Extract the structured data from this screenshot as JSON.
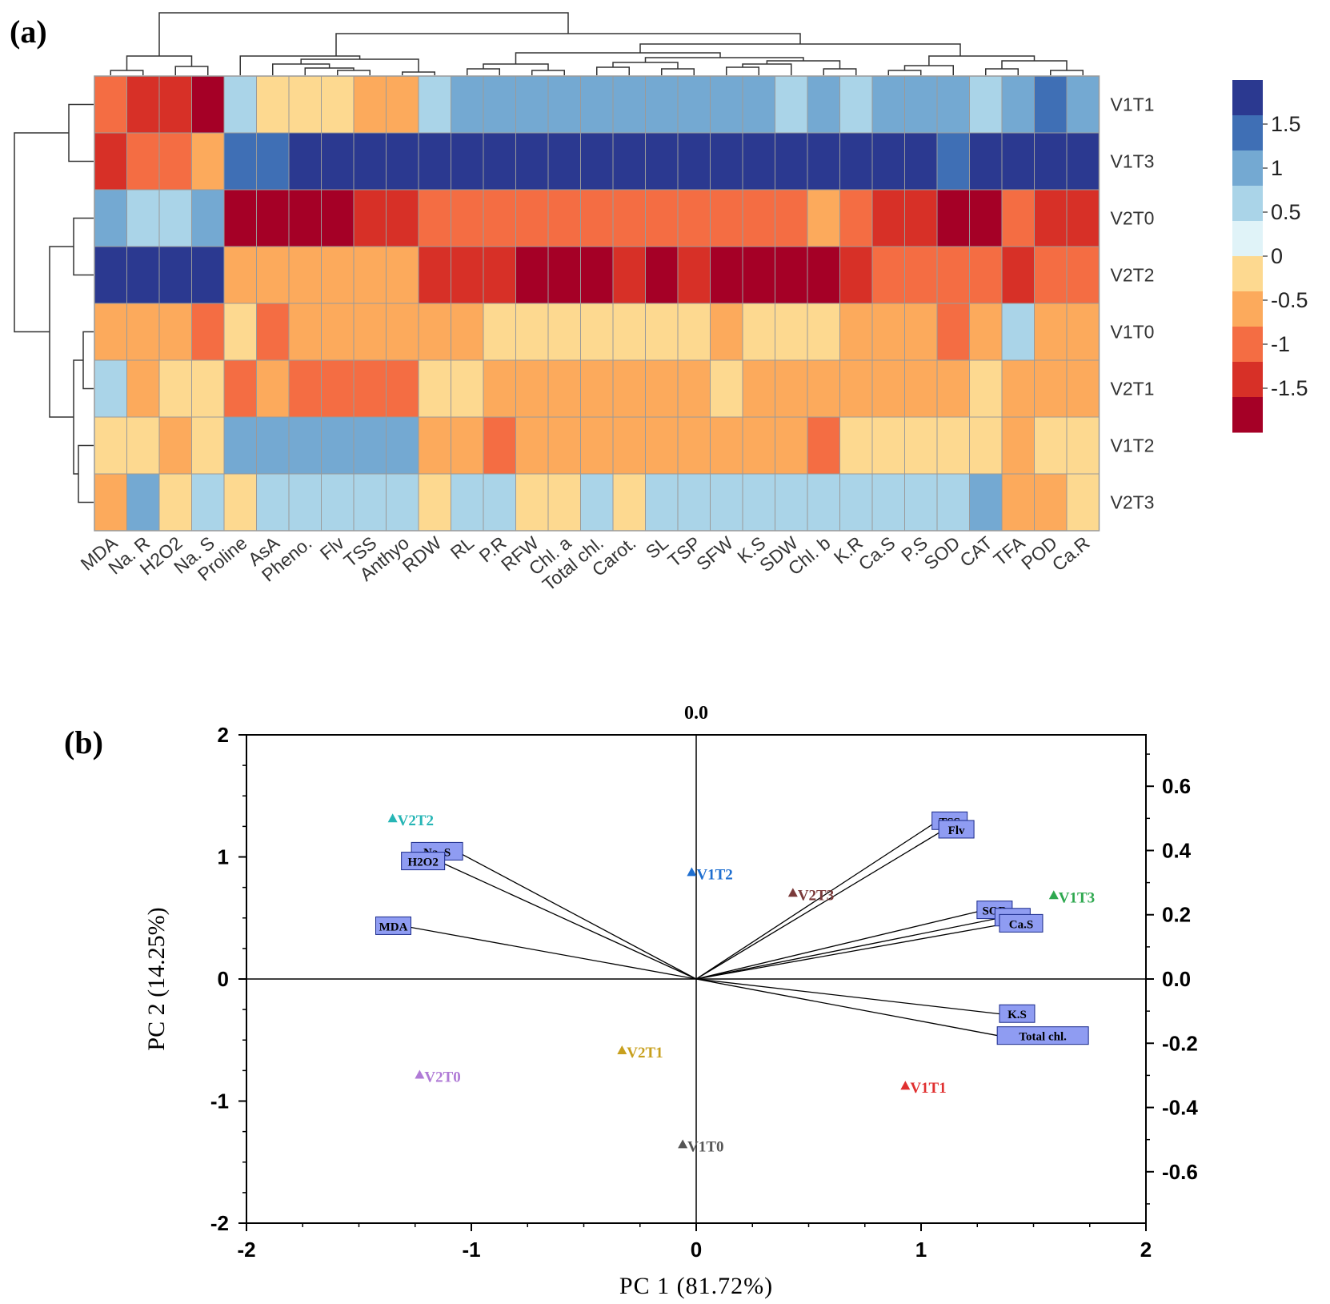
{
  "panel_labels": {
    "a": "(a)",
    "b": "(b)"
  },
  "chart_data": [
    {
      "type": "heatmap",
      "panel": "(a)",
      "columns": [
        "MDA",
        "Na. R",
        "H2O2",
        "Na. S",
        "Proline",
        "AsA",
        "Pheno.",
        "Flv",
        "TSS",
        "Anthyo",
        "RDW",
        "RL",
        "P.R",
        "RFW",
        "Chl. a",
        "Total chl.",
        "Carot.",
        "SL",
        "TSP",
        "SFW",
        "K.S",
        "SDW",
        "Chl. b",
        "K.R",
        "Ca.S",
        "P.S",
        "SOD",
        "CAT",
        "TFA",
        "POD",
        "Ca.R"
      ],
      "rows": [
        "V1T1",
        "V1T3",
        "V2T0",
        "V2T2",
        "V1T0",
        "V2T1",
        "V1T2",
        "V2T3"
      ],
      "values": [
        [
          -1.0,
          -1.5,
          -1.5,
          -2.0,
          0.5,
          0.0,
          0.0,
          0.0,
          -0.5,
          -0.5,
          0.5,
          1.0,
          1.0,
          1.0,
          1.0,
          1.0,
          1.0,
          1.0,
          1.0,
          1.0,
          1.0,
          0.5,
          1.0,
          0.5,
          1.0,
          1.0,
          1.0,
          0.5,
          1.0,
          1.5,
          1.0
        ],
        [
          -1.5,
          -1.0,
          -1.0,
          -0.5,
          1.5,
          1.5,
          2.0,
          2.0,
          2.0,
          2.0,
          2.0,
          2.0,
          2.0,
          2.0,
          2.0,
          2.0,
          2.0,
          2.0,
          2.0,
          2.0,
          2.0,
          2.0,
          2.0,
          2.0,
          2.0,
          2.0,
          1.5,
          2.0,
          2.0,
          2.0,
          2.0
        ],
        [
          1.0,
          0.5,
          0.5,
          1.0,
          -2.0,
          -2.0,
          -2.0,
          -2.0,
          -1.5,
          -1.5,
          -1.0,
          -1.0,
          -1.0,
          -1.0,
          -1.0,
          -1.0,
          -1.0,
          -1.0,
          -1.0,
          -1.0,
          -1.0,
          -1.0,
          -0.5,
          -1.0,
          -1.5,
          -1.5,
          -2.0,
          -2.0,
          -1.0,
          -1.5,
          -1.5
        ],
        [
          2.0,
          2.0,
          2.0,
          2.0,
          -0.5,
          -0.5,
          -0.5,
          -0.5,
          -0.5,
          -0.5,
          -1.5,
          -1.5,
          -1.5,
          -2.0,
          -2.0,
          -2.0,
          -1.5,
          -2.0,
          -1.5,
          -2.0,
          -2.0,
          -2.0,
          -2.0,
          -1.5,
          -1.0,
          -1.0,
          -1.0,
          -1.0,
          -1.5,
          -1.0,
          -1.0
        ],
        [
          -0.5,
          -0.5,
          -0.5,
          -1.0,
          0.0,
          -1.0,
          -0.5,
          -0.5,
          -0.5,
          -0.5,
          -0.5,
          -0.5,
          0.0,
          0.0,
          0.0,
          0.0,
          0.0,
          0.0,
          0.0,
          -0.5,
          0.0,
          0.0,
          0.0,
          -0.5,
          -0.5,
          -0.5,
          -1.0,
          -0.5,
          0.5,
          -0.5,
          -0.5
        ],
        [
          0.5,
          -0.5,
          0.0,
          0.0,
          -1.0,
          -0.5,
          -1.0,
          -1.0,
          -1.0,
          -1.0,
          0.0,
          0.0,
          -0.5,
          -0.5,
          -0.5,
          -0.5,
          -0.5,
          -0.5,
          -0.5,
          0.0,
          -0.5,
          -0.5,
          -0.5,
          -0.5,
          -0.5,
          -0.5,
          -0.5,
          0.0,
          -0.5,
          -0.5,
          -0.5
        ],
        [
          0.0,
          0.0,
          -0.5,
          0.0,
          1.0,
          1.0,
          1.0,
          1.0,
          1.0,
          1.0,
          -0.5,
          -0.5,
          -1.0,
          -0.5,
          -0.5,
          -0.5,
          -0.5,
          -0.5,
          -0.5,
          -0.5,
          -0.5,
          -0.5,
          -1.0,
          0.0,
          0.0,
          0.0,
          0.0,
          0.0,
          -0.5,
          0.0,
          0.0
        ],
        [
          -0.5,
          1.0,
          0.0,
          0.5,
          0.0,
          0.5,
          0.5,
          0.5,
          0.5,
          0.5,
          0.0,
          0.5,
          0.5,
          0.0,
          0.0,
          0.5,
          0.0,
          0.5,
          0.5,
          0.5,
          0.5,
          0.5,
          0.5,
          0.5,
          0.5,
          0.5,
          0.5,
          1.0,
          -0.5,
          -0.5,
          0.0
        ]
      ],
      "colorbar": {
        "ticks": [
          "1.5",
          "1",
          "0.5",
          "0",
          "-0.5",
          "-1",
          "-1.5"
        ],
        "colors": [
          "#2b3990",
          "#3f6fb5",
          "#74a9d2",
          "#aad4e8",
          "#e0f3f8",
          "#fdd990",
          "#fcaa5c",
          "#f46d43",
          "#d73027",
          "#a50026"
        ]
      },
      "dendrograms": {
        "columns": true,
        "rows": true
      }
    },
    {
      "type": "scatter",
      "subtype": "pca-biplot",
      "panel": "(b)",
      "top_label": "0.0",
      "xlabel": "PC 1 (81.72%)",
      "ylabel": "PC 2 (14.25%)",
      "xlim": [
        -2,
        2
      ],
      "ylim": [
        -2,
        2
      ],
      "x_ticks": [
        "-2",
        "-1",
        "0",
        "1",
        "2"
      ],
      "y_ticks": [
        "2",
        "1",
        "0",
        "-1",
        "-2"
      ],
      "right_axis": {
        "ylim": [
          -0.76,
          0.76
        ],
        "ticks": [
          "0.6",
          "0.4",
          "0.2",
          "0.0",
          "-0.2",
          "-0.4",
          "-0.6"
        ]
      },
      "points": [
        {
          "label": "V2T2",
          "x": -1.35,
          "y": 1.31,
          "color": "#26b5b5"
        },
        {
          "label": "V1T2",
          "x": -0.02,
          "y": 0.87,
          "color": "#1f6fd0"
        },
        {
          "label": "V2T3",
          "x": 0.43,
          "y": 0.7,
          "color": "#7a3a3a"
        },
        {
          "label": "V1T3",
          "x": 1.59,
          "y": 0.68,
          "color": "#2ea84f"
        },
        {
          "label": "V2T1",
          "x": -0.33,
          "y": -0.59,
          "color": "#c8a01e"
        },
        {
          "label": "V2T0",
          "x": -1.23,
          "y": -0.79,
          "color": "#b07bd6"
        },
        {
          "label": "V1T1",
          "x": 0.93,
          "y": -0.88,
          "color": "#e03030"
        },
        {
          "label": "V1T0",
          "x": -0.06,
          "y": -1.36,
          "color": "#555555"
        }
      ],
      "loadings": [
        {
          "label": "TSS",
          "x": 1.07,
          "y": 1.29
        },
        {
          "label": "Flv",
          "x": 1.1,
          "y": 1.22
        },
        {
          "label": "Na. S",
          "x": -1.06,
          "y": 1.04
        },
        {
          "label": "H2O2",
          "x": -1.14,
          "y": 0.96
        },
        {
          "label": "MDA",
          "x": -1.29,
          "y": 0.43
        },
        {
          "label": "SOD",
          "x": 1.27,
          "y": 0.56
        },
        {
          "label": "P.S",
          "x": 1.35,
          "y": 0.5
        },
        {
          "label": "Ca.S",
          "x": 1.37,
          "y": 0.45
        },
        {
          "label": "K.S",
          "x": 1.37,
          "y": -0.29
        },
        {
          "label": "Total chl.",
          "x": 1.36,
          "y": -0.47
        }
      ]
    }
  ]
}
